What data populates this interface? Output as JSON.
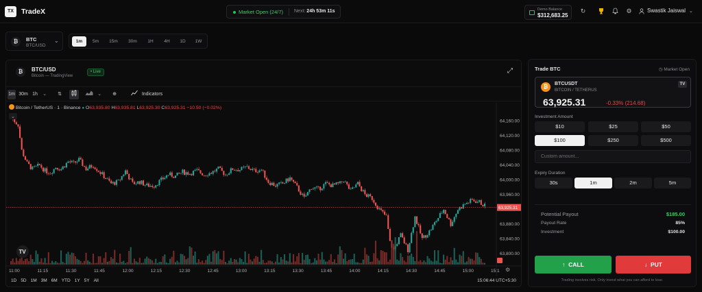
{
  "app": {
    "logo": "TX",
    "name": "TradeX"
  },
  "market": {
    "status": "Market Open (24/7)",
    "next_label": "Next:",
    "next_value": "24h 53m 11s"
  },
  "balance": {
    "label": "Demo Balance",
    "value": "$312,683.25"
  },
  "user": {
    "name": "Swastik Jaiswal"
  },
  "pair_selector": {
    "name": "BTC",
    "sub": "BTC/USD"
  },
  "timeframes": [
    "1m",
    "5m",
    "15m",
    "30m",
    "1H",
    "4H",
    "1D",
    "1W"
  ],
  "timeframes_active": 0,
  "chart_card": {
    "name": "BTC/USD",
    "sub": "Bitcoin — TradingView",
    "live": "Live"
  },
  "tv_toolbar": {
    "intervals": [
      "1m",
      "30m",
      "1h"
    ],
    "indicators": "Indicators"
  },
  "tv_legend": {
    "symbol": "Bitcoin / TetherUS · 1 · Binance",
    "o": "63,935.80",
    "h": "63,935.81",
    "l": "63,925.30",
    "c": "63,925.31",
    "chg": "−10.50 (−0.02%)"
  },
  "chart_data": {
    "type": "candlestick",
    "ylim": [
      63770,
      64180
    ],
    "y_ticks": [
      "64,160.00",
      "64,120.00",
      "64,080.00",
      "64,040.00",
      "64,000.00",
      "63,960.00",
      "63,880.00",
      "63,840.00",
      "63,800.00"
    ],
    "y_tick_values": [
      64160,
      64120,
      64080,
      64040,
      64000,
      63960,
      63880,
      63840,
      63800
    ],
    "x_ticks": [
      "11:00",
      "11:15",
      "11:30",
      "11:45",
      "12:00",
      "12:15",
      "12:30",
      "12:45",
      "13:00",
      "13:15",
      "13:30",
      "13:45",
      "14:00",
      "14:15",
      "14:30",
      "14:45",
      "15:00",
      "15:1"
    ],
    "current_price": "63,925.31",
    "current_price_value": 63925.31,
    "close_path": [
      [
        0,
        64170
      ],
      [
        4,
        64150
      ],
      [
        6,
        64080
      ],
      [
        9,
        64045
      ],
      [
        12,
        64030
      ],
      [
        16,
        64040
      ],
      [
        19,
        64025
      ],
      [
        22,
        64020
      ],
      [
        25,
        64035
      ],
      [
        28,
        64030
      ],
      [
        32,
        64050
      ],
      [
        35,
        64045
      ],
      [
        38,
        64055
      ],
      [
        42,
        64030
      ],
      [
        46,
        64040
      ],
      [
        50,
        64020
      ],
      [
        54,
        64000
      ],
      [
        56,
        63990
      ],
      [
        60,
        63995
      ],
      [
        64,
        64025
      ],
      [
        68,
        63990
      ],
      [
        72,
        63995
      ],
      [
        76,
        63985
      ],
      [
        80,
        63985
      ],
      [
        84,
        64000
      ],
      [
        88,
        64015
      ],
      [
        92,
        64010
      ],
      [
        96,
        64022
      ],
      [
        100,
        64018
      ],
      [
        104,
        64025
      ],
      [
        108,
        64015
      ],
      [
        112,
        64020
      ],
      [
        116,
        64030
      ],
      [
        120,
        64015
      ],
      [
        124,
        64030
      ],
      [
        128,
        64028
      ],
      [
        132,
        64035
      ],
      [
        136,
        64025
      ],
      [
        140,
        64028
      ],
      [
        144,
        63995
      ],
      [
        148,
        63985
      ],
      [
        152,
        63990
      ],
      [
        156,
        64005
      ],
      [
        160,
        63980
      ],
      [
        164,
        63950
      ],
      [
        168,
        63980
      ],
      [
        172,
        63975
      ],
      [
        176,
        63990
      ],
      [
        180,
        63985
      ],
      [
        184,
        63990
      ],
      [
        186,
        64000
      ],
      [
        190,
        63970
      ],
      [
        194,
        63990
      ],
      [
        198,
        63960
      ],
      [
        202,
        63950
      ],
      [
        206,
        63920
      ],
      [
        210,
        63900
      ],
      [
        212,
        63830
      ],
      [
        214,
        63810
      ],
      [
        218,
        63850
      ],
      [
        222,
        63810
      ],
      [
        226,
        63900
      ],
      [
        230,
        63840
      ],
      [
        234,
        63860
      ],
      [
        238,
        63890
      ],
      [
        242,
        63920
      ],
      [
        246,
        63880
      ],
      [
        250,
        63920
      ],
      [
        254,
        63935
      ],
      [
        258,
        63945
      ],
      [
        262,
        63940
      ],
      [
        265,
        63930
      ]
    ]
  },
  "date_ranges": [
    "1D",
    "5D",
    "1M",
    "3M",
    "6M",
    "YTD",
    "1Y",
    "5Y",
    "All"
  ],
  "clock": "15:06:44 UTC+5:30",
  "trade": {
    "title": "Trade BTC",
    "status": "Market Open",
    "asset_symbol": "BTCUSDT",
    "asset_sub": "BITCOIN / TETHERUS",
    "price": "63,925.31",
    "change": "-0.33% (214.68)",
    "investment_label": "Investment Amount",
    "amounts": [
      "$10",
      "$25",
      "$50",
      "$100",
      "$250",
      "$500"
    ],
    "amount_active": 3,
    "custom_placeholder": "Custom amount...",
    "expiry_label": "Expiry Duration",
    "expiries": [
      "30s",
      "1m",
      "2m",
      "5m"
    ],
    "expiry_active": 1,
    "potential_payout_label": "Potential Payout",
    "potential_payout": "$185.00",
    "payout_rate_label": "Payout Rate",
    "payout_rate": "85%",
    "investment_row_label": "Investment",
    "investment_row": "$100.00",
    "call_label": "CALL",
    "put_label": "PUT",
    "disclaimer": "Trading involves risk. Only invest what you can afford to lose."
  },
  "colors": {
    "up": "#26a69a",
    "down": "#ef5350",
    "call": "#22a04a",
    "put": "#e03a3a",
    "accent": "#22c55e"
  }
}
